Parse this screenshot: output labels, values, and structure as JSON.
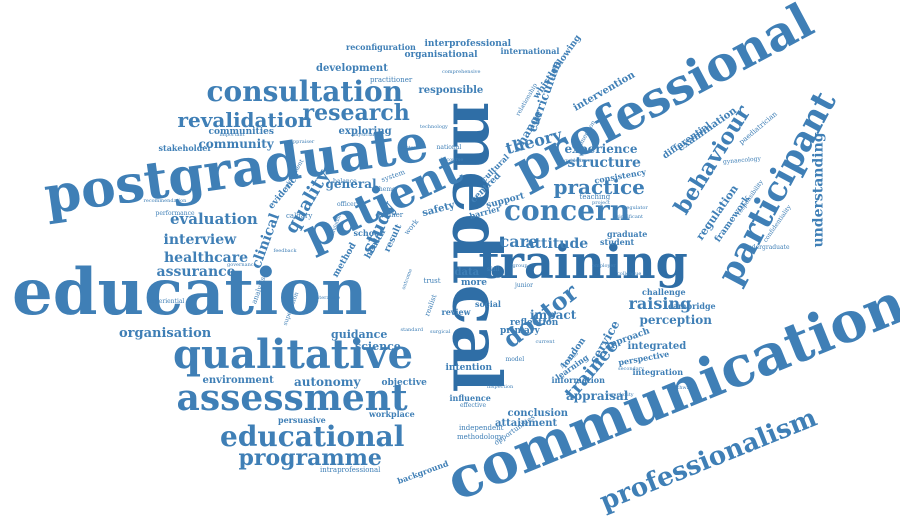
{
  "colors": {
    "primary": "#3f7fb6",
    "dark": "#2f6ea6",
    "light": "#6c9dc8",
    "background": "#ffffff"
  },
  "words": [
    {
      "t": "education"
    },
    {
      "t": "medical"
    },
    {
      "t": "communication"
    },
    {
      "t": "postgraduate"
    },
    {
      "t": "professional"
    },
    {
      "t": "training"
    },
    {
      "t": "patient"
    },
    {
      "t": "qualitative"
    },
    {
      "t": "assessment"
    },
    {
      "t": "consultation"
    },
    {
      "t": "participant"
    },
    {
      "t": "professionalism"
    },
    {
      "t": "educational"
    },
    {
      "t": "programme"
    },
    {
      "t": "research"
    },
    {
      "t": "concern"
    },
    {
      "t": "practice"
    },
    {
      "t": "revalidation"
    },
    {
      "t": "behaviour"
    },
    {
      "t": "doctor"
    },
    {
      "t": "understanding"
    },
    {
      "t": "trainee"
    },
    {
      "t": "quality"
    },
    {
      "t": "clinical"
    },
    {
      "t": "curriculum"
    },
    {
      "t": "evaluation"
    },
    {
      "t": "interview"
    },
    {
      "t": "healthcare"
    },
    {
      "t": "assurance"
    },
    {
      "t": "structure"
    },
    {
      "t": "theory"
    },
    {
      "t": "experience"
    },
    {
      "t": "care"
    },
    {
      "t": "attitude"
    },
    {
      "t": "raising"
    },
    {
      "t": "impact"
    },
    {
      "t": "perception"
    },
    {
      "t": "appraisal"
    },
    {
      "t": "organisation"
    },
    {
      "t": "autonomy"
    },
    {
      "t": "environment"
    },
    {
      "t": "study"
    },
    {
      "t": "intervention"
    },
    {
      "t": "service"
    },
    {
      "t": "integrated"
    },
    {
      "t": "change"
    },
    {
      "t": "community"
    },
    {
      "t": "communities"
    },
    {
      "t": "exploring"
    },
    {
      "t": "general"
    },
    {
      "t": "guidance"
    },
    {
      "t": "science"
    },
    {
      "t": "development"
    },
    {
      "t": "organisational"
    },
    {
      "t": "interprofessional"
    },
    {
      "t": "reconfiguration"
    },
    {
      "t": "international"
    },
    {
      "t": "practitioner"
    },
    {
      "t": "responsible"
    },
    {
      "t": "whistleblowing"
    },
    {
      "t": "relationship"
    },
    {
      "t": "examination"
    },
    {
      "t": "paediatrician"
    },
    {
      "t": "differential"
    },
    {
      "t": "consistency"
    },
    {
      "t": "teaching"
    },
    {
      "t": "regulation"
    },
    {
      "t": "framework"
    },
    {
      "t": "approach"
    },
    {
      "t": "perspective"
    },
    {
      "t": "integration"
    },
    {
      "t": "information"
    },
    {
      "t": "conclusion"
    },
    {
      "t": "attainment"
    },
    {
      "t": "influence"
    },
    {
      "t": "effective"
    },
    {
      "t": "independent"
    },
    {
      "t": "methodology"
    },
    {
      "t": "opportunities"
    },
    {
      "t": "background"
    },
    {
      "t": "intraprofessional"
    },
    {
      "t": "workplace"
    },
    {
      "t": "persuasive"
    },
    {
      "t": "objective"
    },
    {
      "t": "intention"
    },
    {
      "t": "reflection"
    },
    {
      "t": "primary"
    },
    {
      "t": "review"
    },
    {
      "t": "social"
    },
    {
      "t": "data"
    },
    {
      "t": "more"
    },
    {
      "t": "challenge"
    },
    {
      "t": "cambridge"
    },
    {
      "t": "undergraduate"
    },
    {
      "t": "gynaecology"
    },
    {
      "t": "graduate"
    },
    {
      "t": "student"
    },
    {
      "t": "support"
    },
    {
      "t": "barrier"
    },
    {
      "t": "safety"
    },
    {
      "t": "evidence"
    },
    {
      "t": "stakeholder"
    },
    {
      "t": "important"
    },
    {
      "t": "national"
    },
    {
      "t": "system"
    },
    {
      "t": "theme"
    },
    {
      "t": "officer"
    },
    {
      "t": "health"
    },
    {
      "t": "school"
    },
    {
      "t": "method"
    },
    {
      "t": "result"
    },
    {
      "t": "trust"
    },
    {
      "t": "work"
    },
    {
      "t": "trainer"
    },
    {
      "t": "calgary"
    },
    {
      "t": "balance"
    },
    {
      "t": "placement"
    },
    {
      "t": "performance"
    },
    {
      "t": "recommendation"
    },
    {
      "t": "analysis"
    },
    {
      "t": "experiential"
    },
    {
      "t": "london"
    },
    {
      "t": "learning"
    },
    {
      "t": "centred"
    },
    {
      "t": "cultural"
    },
    {
      "t": "guideline"
    },
    {
      "t": "project"
    },
    {
      "t": "regulator"
    },
    {
      "t": "significant"
    },
    {
      "t": "model"
    },
    {
      "t": "current"
    },
    {
      "t": "physician"
    },
    {
      "t": "appraiser"
    },
    {
      "t": "dimension"
    },
    {
      "t": "technology"
    },
    {
      "t": "comprehensive"
    },
    {
      "t": "discourse"
    },
    {
      "t": "confidentiality"
    },
    {
      "t": "responsibility"
    },
    {
      "t": "literature"
    },
    {
      "t": "supervision"
    },
    {
      "t": "realist"
    },
    {
      "t": "skill"
    },
    {
      "t": "group"
    },
    {
      "t": "junior"
    },
    {
      "t": "portfolio"
    },
    {
      "t": "standard"
    },
    {
      "t": "surgical"
    },
    {
      "t": "governance"
    },
    {
      "t": "feedback"
    },
    {
      "t": "outcome"
    },
    {
      "t": "simulation"
    },
    {
      "t": "complexity"
    },
    {
      "t": "employer"
    },
    {
      "t": "doctoral"
    },
    {
      "t": "inspection"
    },
    {
      "t": "pathway"
    },
    {
      "t": "colleague"
    },
    {
      "t": "secondary"
    }
  ]
}
